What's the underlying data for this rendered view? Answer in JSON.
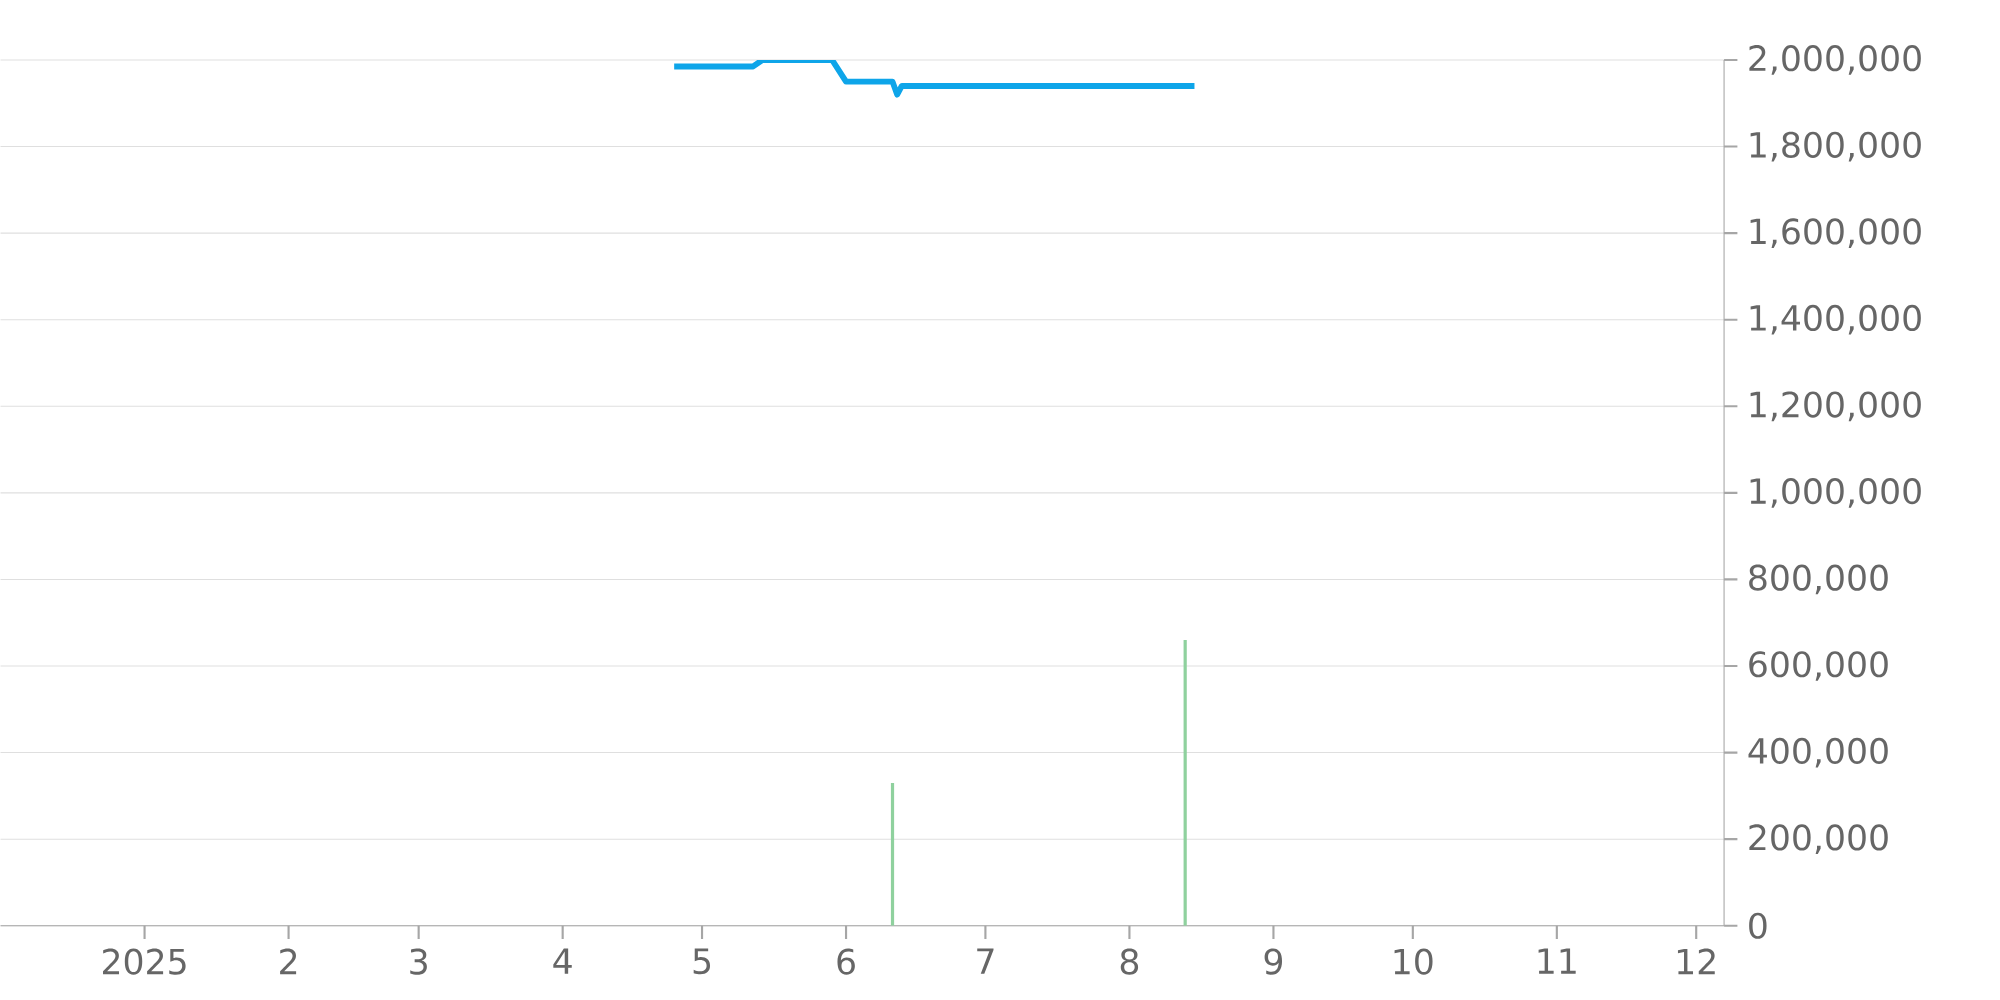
{
  "chart_data": {
    "type": "line",
    "xlim": [
      "2024-12-01",
      "2025-12-07"
    ],
    "xticks": [
      {
        "value": "2025-01-01",
        "label": "2025"
      },
      {
        "value": "2025-02-01",
        "label": "2"
      },
      {
        "value": "2025-03-01",
        "label": "3"
      },
      {
        "value": "2025-04-01",
        "label": "4"
      },
      {
        "value": "2025-05-01",
        "label": "5"
      },
      {
        "value": "2025-06-01",
        "label": "6"
      },
      {
        "value": "2025-07-01",
        "label": "7"
      },
      {
        "value": "2025-08-01",
        "label": "8"
      },
      {
        "value": "2025-09-01",
        "label": "9"
      },
      {
        "value": "2025-10-01",
        "label": "10"
      },
      {
        "value": "2025-11-01",
        "label": "11"
      },
      {
        "value": "2025-12-01",
        "label": "12"
      }
    ],
    "ylim": [
      0,
      2000000
    ],
    "yticks": [
      {
        "value": 0,
        "label": "0"
      },
      {
        "value": 200000,
        "label": "200,000"
      },
      {
        "value": 400000,
        "label": "400,000"
      },
      {
        "value": 600000,
        "label": "600,000"
      },
      {
        "value": 800000,
        "label": "800,000"
      },
      {
        "value": 1000000,
        "label": "1,000,000"
      },
      {
        "value": 1200000,
        "label": "1,200,000"
      },
      {
        "value": 1400000,
        "label": "1,400,000"
      },
      {
        "value": 1600000,
        "label": "1,600,000"
      },
      {
        "value": 1800000,
        "label": "1,800,000"
      },
      {
        "value": 2000000,
        "label": "2,000,000"
      }
    ],
    "grid": "y",
    "series": [
      {
        "type": "bar",
        "color": "#8fd19e",
        "x": [
          "2025-06-11",
          "2025-08-13"
        ],
        "values": [
          330000,
          660000
        ]
      },
      {
        "color": "#0ea5e9",
        "x": [
          "2025-04-25",
          "2025-05-12",
          "2025-05-14",
          "2025-05-29",
          "2025-06-01",
          "2025-06-11",
          "2025-06-12",
          "2025-06-13",
          "2025-08-15"
        ],
        "values": [
          1985000,
          1985000,
          2000000,
          2000000,
          1950000,
          1950000,
          1920000,
          1940000,
          1940000
        ]
      }
    ]
  }
}
